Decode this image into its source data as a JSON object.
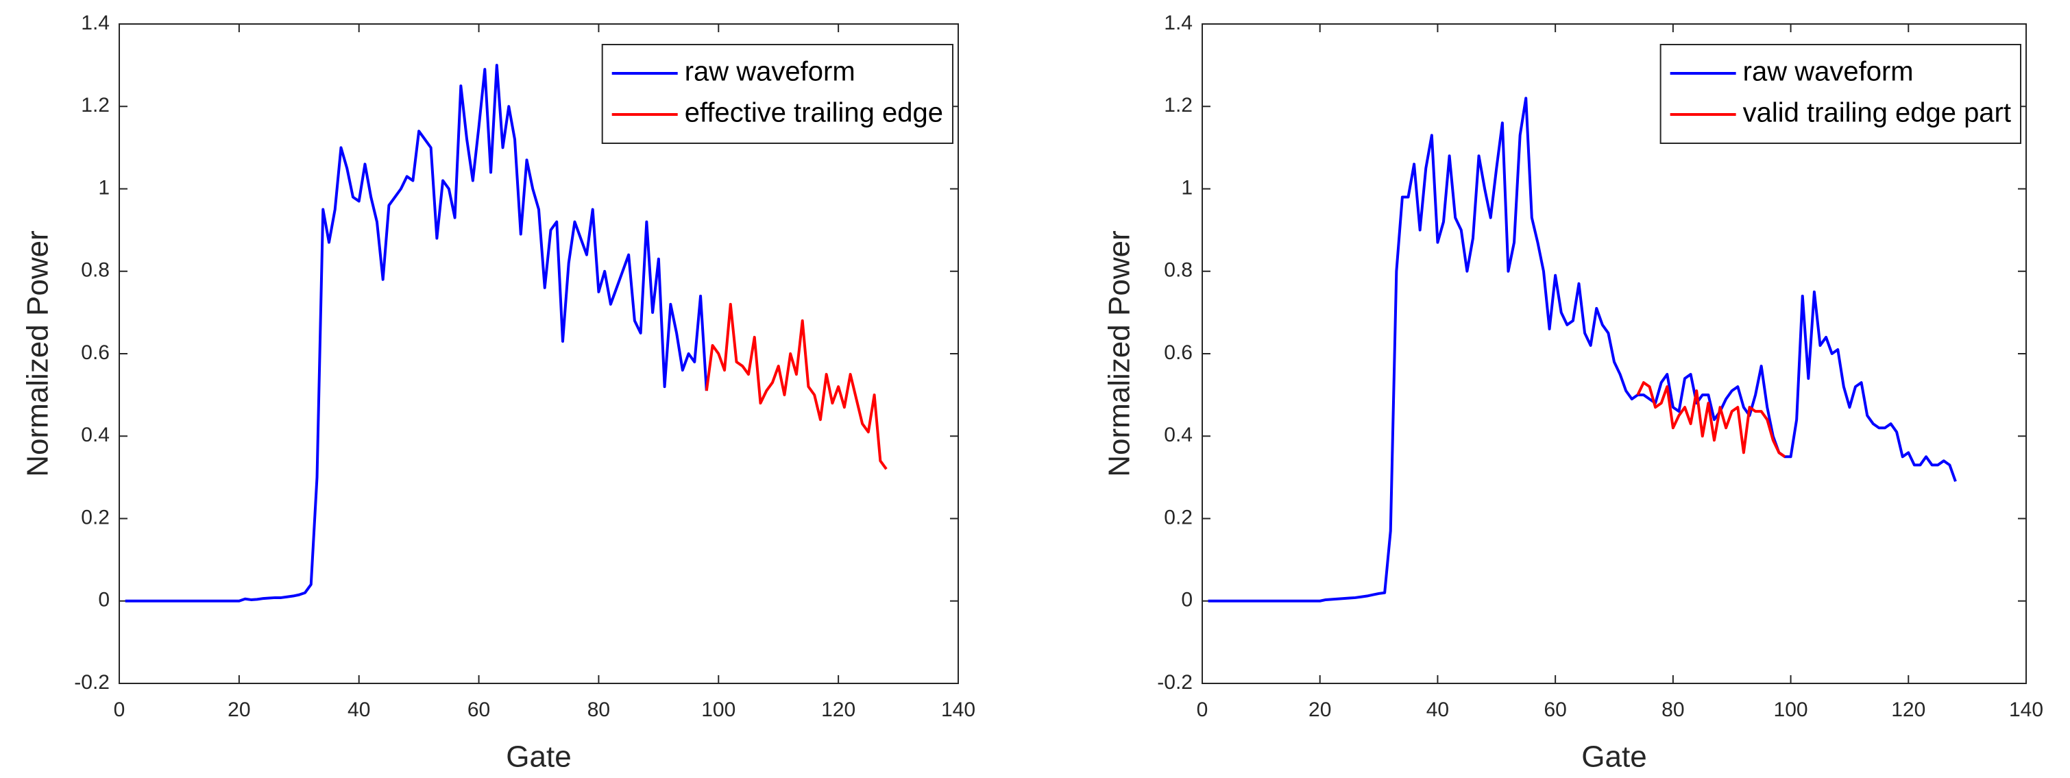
{
  "chart_data": [
    {
      "type": "line",
      "xlabel": "Gate",
      "ylabel": "Normalized Power",
      "xlim": [
        0,
        140
      ],
      "ylim": [
        -0.2,
        1.4
      ],
      "xticks": [
        0,
        20,
        40,
        60,
        80,
        100,
        120,
        140
      ],
      "yticks": [
        -0.2,
        0,
        0.2,
        0.4,
        0.6,
        0.8,
        1,
        1.2,
        1.4
      ],
      "legend": "upper right",
      "series": [
        {
          "name": "raw waveform",
          "color": "#0000ff",
          "x": [
            1,
            2,
            3,
            4,
            5,
            6,
            7,
            8,
            9,
            10,
            11,
            12,
            13,
            14,
            15,
            16,
            17,
            18,
            19,
            20,
            21,
            22,
            23,
            24,
            25,
            26,
            27,
            28,
            29,
            30,
            31,
            32,
            33,
            34,
            35,
            36,
            37,
            38,
            39,
            40,
            41,
            42,
            43,
            44,
            45,
            46,
            47,
            48,
            49,
            50,
            51,
            52,
            53,
            54,
            55,
            56,
            57,
            58,
            59,
            60,
            61,
            62,
            63,
            64,
            65,
            66,
            67,
            68,
            69,
            70,
            71,
            72,
            73,
            74,
            75,
            76,
            77,
            78,
            79,
            80,
            81,
            82,
            83,
            84,
            85,
            86,
            87,
            88,
            89,
            90,
            91,
            92,
            93,
            94,
            95,
            96,
            97,
            98
          ],
          "values": [
            0,
            0,
            0,
            0,
            0,
            0,
            0,
            0,
            0,
            0,
            0,
            0,
            0,
            0,
            0,
            0,
            0,
            0,
            0,
            0,
            0.005,
            0.003,
            0.004,
            0.006,
            0.007,
            0.008,
            0.008,
            0.01,
            0.012,
            0.015,
            0.02,
            0.04,
            0.3,
            0.95,
            0.87,
            0.95,
            1.1,
            1.05,
            0.98,
            0.97,
            1.06,
            0.98,
            0.92,
            0.78,
            0.96,
            0.98,
            1.0,
            1.03,
            1.02,
            1.14,
            1.12,
            1.1,
            0.88,
            1.02,
            1.0,
            0.93,
            1.25,
            1.12,
            1.02,
            1.15,
            1.29,
            1.04,
            1.3,
            1.1,
            1.2,
            1.12,
            0.89,
            1.07,
            1.0,
            0.95,
            0.76,
            0.9,
            0.92,
            0.63,
            0.82,
            0.92,
            0.88,
            0.84,
            0.95,
            0.75,
            0.8,
            0.72,
            0.76,
            0.8,
            0.84,
            0.68,
            0.65,
            0.92,
            0.7,
            0.83,
            0.52,
            0.72,
            0.65,
            0.56,
            0.6,
            0.58,
            0.74,
            0.51
          ]
        },
        {
          "name": "effective trailing edge",
          "color": "#ff0000",
          "x": [
            98,
            99,
            100,
            101,
            102,
            103,
            104,
            105,
            106,
            107,
            108,
            109,
            110,
            111,
            112,
            113,
            114,
            115,
            116,
            117,
            118,
            119,
            120,
            121,
            122,
            123,
            124,
            125,
            126,
            127,
            128
          ],
          "values": [
            0.51,
            0.62,
            0.6,
            0.56,
            0.72,
            0.58,
            0.57,
            0.55,
            0.64,
            0.48,
            0.51,
            0.53,
            0.57,
            0.5,
            0.6,
            0.55,
            0.68,
            0.52,
            0.5,
            0.44,
            0.55,
            0.48,
            0.52,
            0.47,
            0.55,
            0.49,
            0.43,
            0.41,
            0.5,
            0.34,
            0.32
          ]
        }
      ]
    },
    {
      "type": "line",
      "xlabel": "Gate",
      "ylabel": "Normalized Power",
      "xlim": [
        0,
        140
      ],
      "ylim": [
        -0.2,
        1.4
      ],
      "xticks": [
        0,
        20,
        40,
        60,
        80,
        100,
        120,
        140
      ],
      "yticks": [
        -0.2,
        0,
        0.2,
        0.4,
        0.6,
        0.8,
        1,
        1.2,
        1.4
      ],
      "legend": "upper right",
      "series": [
        {
          "name": "raw waveform",
          "color": "#0000ff",
          "x": [
            1,
            2,
            3,
            4,
            5,
            6,
            7,
            8,
            9,
            10,
            11,
            12,
            13,
            14,
            15,
            16,
            17,
            18,
            19,
            20,
            21,
            22,
            23,
            24,
            25,
            26,
            27,
            28,
            29,
            30,
            31,
            32,
            33,
            34,
            35,
            36,
            37,
            38,
            39,
            40,
            41,
            42,
            43,
            44,
            45,
            46,
            47,
            48,
            49,
            50,
            51,
            52,
            53,
            54,
            55,
            56,
            57,
            58,
            59,
            60,
            61,
            62,
            63,
            64,
            65,
            66,
            67,
            68,
            69,
            70,
            71,
            72,
            73,
            74,
            75,
            76,
            77,
            78,
            79,
            80,
            81,
            82,
            83,
            84,
            85,
            86,
            87,
            88,
            89,
            90,
            91,
            92,
            93,
            94,
            95,
            96,
            97,
            98,
            99,
            100,
            101,
            102,
            103,
            104,
            105,
            106,
            107,
            108,
            109,
            110,
            111,
            112,
            113,
            114,
            115,
            116,
            117,
            118,
            119,
            120,
            121,
            122,
            123,
            124,
            125,
            126,
            127,
            128
          ],
          "values": [
            0,
            0,
            0,
            0,
            0,
            0,
            0,
            0,
            0,
            0,
            0,
            0,
            0,
            0,
            0,
            0,
            0,
            0,
            0,
            0,
            0.003,
            0.004,
            0.005,
            0.006,
            0.007,
            0.008,
            0.01,
            0.012,
            0.015,
            0.018,
            0.02,
            0.17,
            0.8,
            0.98,
            0.98,
            1.06,
            0.9,
            1.05,
            1.13,
            0.87,
            0.92,
            1.08,
            0.93,
            0.9,
            0.8,
            0.88,
            1.08,
            1.0,
            0.93,
            1.05,
            1.16,
            0.8,
            0.87,
            1.13,
            1.22,
            0.93,
            0.87,
            0.8,
            0.66,
            0.79,
            0.7,
            0.67,
            0.68,
            0.77,
            0.65,
            0.62,
            0.71,
            0.67,
            0.65,
            0.58,
            0.55,
            0.51,
            0.49,
            0.5,
            0.5,
            0.49,
            0.48,
            0.53,
            0.55,
            0.47,
            0.46,
            0.54,
            0.55,
            0.48,
            0.5,
            0.5,
            0.44,
            0.46,
            0.49,
            0.51,
            0.52,
            0.47,
            0.45,
            0.5,
            0.57,
            0.47,
            0.4,
            0.36,
            0.35,
            0.35,
            0.44,
            0.74,
            0.54,
            0.75,
            0.62,
            0.64,
            0.6,
            0.61,
            0.52,
            0.47,
            0.52,
            0.53,
            0.45,
            0.43,
            0.42,
            0.42,
            0.43,
            0.41,
            0.35,
            0.36,
            0.33,
            0.33,
            0.35,
            0.33,
            0.33,
            0.34,
            0.33,
            0.29
          ]
        },
        {
          "name": "valid trailing edge part",
          "color": "#ff0000",
          "x": [
            74,
            75,
            76,
            77,
            78,
            79,
            80,
            81,
            82,
            83,
            84,
            85,
            86,
            87,
            88,
            89,
            90,
            91,
            92,
            93,
            94,
            95,
            96,
            97,
            98,
            99
          ],
          "values": [
            0.5,
            0.53,
            0.52,
            0.47,
            0.48,
            0.52,
            0.42,
            0.45,
            0.47,
            0.43,
            0.51,
            0.4,
            0.48,
            0.39,
            0.47,
            0.42,
            0.46,
            0.47,
            0.36,
            0.47,
            0.46,
            0.46,
            0.44,
            0.39,
            0.36,
            0.35
          ]
        }
      ]
    }
  ]
}
